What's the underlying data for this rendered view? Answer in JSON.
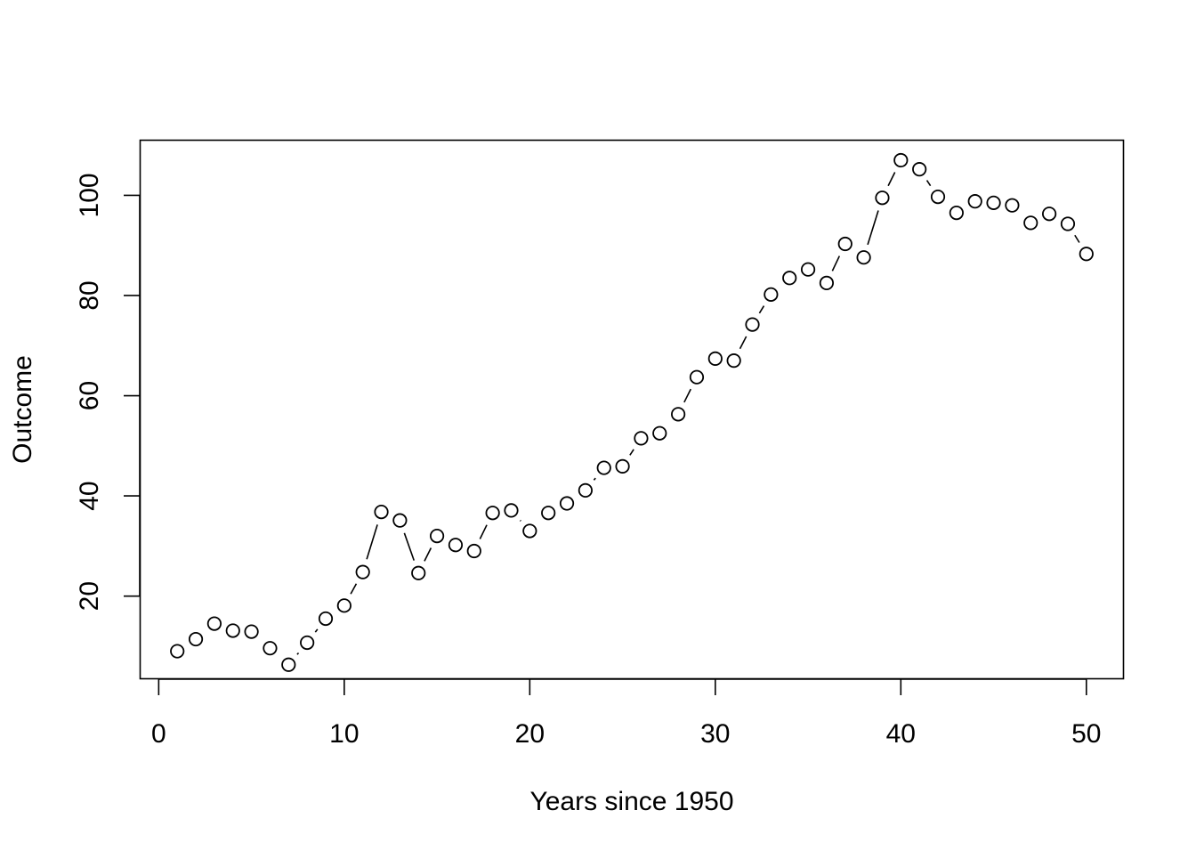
{
  "chart_data": {
    "type": "line",
    "title": "",
    "xlabel": "Years since 1950",
    "ylabel": "Outcome",
    "xlim": [
      -1,
      52
    ],
    "ylim": [
      3.5,
      111
    ],
    "x_ticks": [
      0,
      10,
      20,
      30,
      40,
      50
    ],
    "y_ticks": [
      20,
      40,
      60,
      80,
      100
    ],
    "grid": false,
    "legend": "none",
    "marker": "open-circle",
    "line_style": "connecting segments between points",
    "series": [
      {
        "x": [
          1,
          2,
          3,
          4,
          5,
          6,
          7,
          8,
          9,
          10,
          11,
          12,
          13,
          14,
          15,
          16,
          17,
          18,
          19,
          20,
          21,
          22,
          23,
          24,
          25,
          26,
          27,
          28,
          29,
          30,
          31,
          32,
          33,
          34,
          35,
          36,
          37,
          38,
          39,
          40,
          41,
          42,
          43,
          44,
          45,
          46,
          47,
          48,
          49,
          50
        ],
        "values": [
          9.0,
          11.4,
          14.5,
          13.1,
          12.9,
          9.6,
          6.3,
          10.7,
          15.5,
          18.1,
          24.8,
          36.8,
          35.1,
          24.6,
          32.0,
          30.2,
          29.0,
          36.6,
          37.1,
          33.0,
          36.6,
          38.5,
          41.1,
          45.6,
          45.9,
          51.5,
          52.5,
          56.3,
          63.7,
          67.4,
          67.0,
          74.2,
          80.2,
          83.5,
          85.2,
          82.5,
          90.3,
          87.6,
          99.5,
          107.0,
          105.2,
          99.7,
          96.5,
          98.8,
          98.5,
          98.0,
          94.5,
          96.3,
          94.3,
          88.3
        ]
      }
    ],
    "colors": {
      "axis": "#000000",
      "marker_stroke": "#000000",
      "marker_fill": "#ffffff",
      "line": "#000000",
      "background": "#ffffff"
    }
  }
}
